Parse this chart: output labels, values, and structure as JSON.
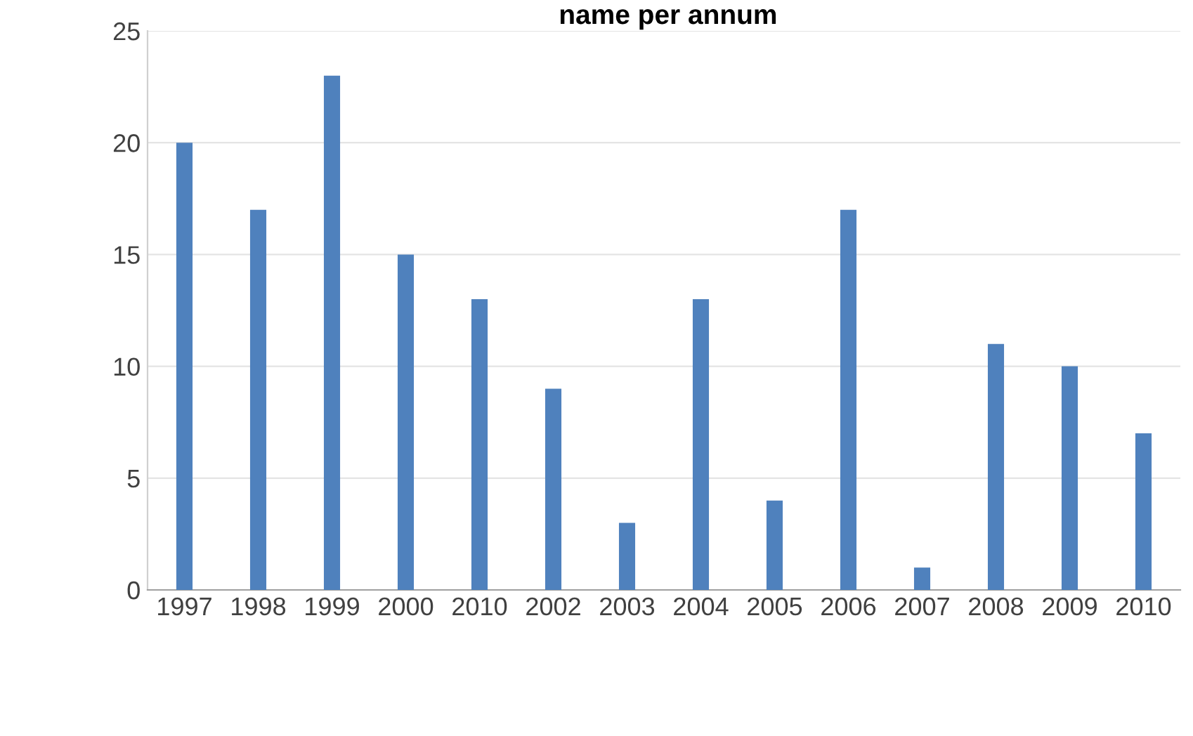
{
  "chart_data": {
    "type": "bar",
    "title": "name per annum",
    "categories": [
      "1997",
      "1998",
      "1999",
      "2000",
      "2010",
      "2002",
      "2003",
      "2004",
      "2005",
      "2006",
      "2007",
      "2008",
      "2009",
      "2010"
    ],
    "values": [
      20,
      17,
      23,
      15,
      13,
      9,
      3,
      13,
      4,
      17,
      1,
      11,
      10,
      7
    ],
    "color": "#4f81bd",
    "ylim": [
      0,
      25
    ],
    "yticks": [
      0,
      5,
      10,
      15,
      20,
      25
    ],
    "grid": "y",
    "legend": false
  }
}
